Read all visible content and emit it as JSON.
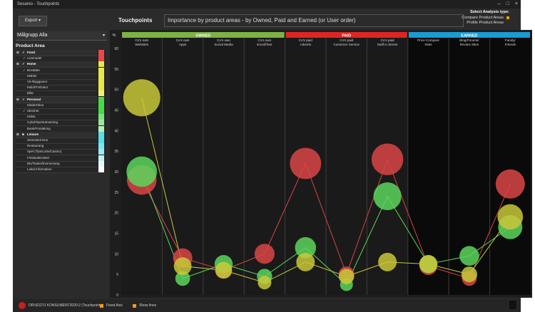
{
  "window": {
    "title": "Sesamo - Touchpoints",
    "controls": [
      "–",
      "□",
      "×"
    ]
  },
  "toolbar": {
    "export_label": "Export"
  },
  "header": {
    "title": "Touchpoints",
    "subtitle": "Importance by product areas - by Owned, Paid and Earned (or User order)"
  },
  "analysis": {
    "label": "Select Analysis type:",
    "options": [
      {
        "label": "Compare Product Areas",
        "selected": true
      },
      {
        "label": "Profile Product Areas",
        "selected": false
      }
    ]
  },
  "sidebar": {
    "group_select": "Målgrupp Alla",
    "product_area_label": "Product Area",
    "items": [
      {
        "label": "Food",
        "category": true,
        "checked": true,
        "color": "#e84848"
      },
      {
        "label": "Livsmedel",
        "category": false,
        "checked": true,
        "color": "#e84848"
      },
      {
        "label": "Home",
        "category": true,
        "checked": true,
        "color": "#e8e84a"
      },
      {
        "label": "Bostäder",
        "category": false,
        "checked": true,
        "color": "#e8e84a"
      },
      {
        "label": "Möbler",
        "category": false,
        "checked": false,
        "color": "#e8e84a"
      },
      {
        "label": "Vit-/Byggvaror",
        "category": false,
        "checked": false,
        "color": "#e8e84a"
      },
      {
        "label": "Mobil/Tv/Dator",
        "category": false,
        "checked": false,
        "color": "#e8e84a"
      },
      {
        "label": "Bilar",
        "category": false,
        "checked": false,
        "color": "#f0f07a"
      },
      {
        "label": "Personal",
        "category": true,
        "checked": true,
        "color": "#44dd44"
      },
      {
        "label": "Kläder/Skor",
        "category": false,
        "checked": false,
        "color": "#44dd44"
      },
      {
        "label": "Skönhet",
        "category": false,
        "checked": true,
        "color": "#44dd44"
      },
      {
        "label": "Hälsa",
        "category": false,
        "checked": false,
        "color": "#7ee27e"
      },
      {
        "label": "Cykel/Sportutrustning",
        "category": false,
        "checked": false,
        "color": "#9ae89a"
      },
      {
        "label": "Bank/Försäkring",
        "category": false,
        "checked": false,
        "color": "#b7efb7"
      },
      {
        "label": "Leisure",
        "category": true,
        "checked": false,
        "color": "#55e0e8"
      },
      {
        "label": "Semesterresor",
        "category": false,
        "checked": false,
        "color": "#55e0e8"
      },
      {
        "label": "Restaurang",
        "category": false,
        "checked": false,
        "color": "#7ae6ec"
      },
      {
        "label": "Spel (Tips/Lotto/Casino)",
        "category": false,
        "checked": false,
        "color": "#9bebf0"
      },
      {
        "label": "Fritidsaktiviteter",
        "category": false,
        "checked": false,
        "color": "#c4f2f5"
      },
      {
        "label": "Bio/Teater/Evenemang",
        "category": false,
        "checked": false,
        "color": "#e3f8fa"
      },
      {
        "label": "Lokal Information",
        "category": false,
        "checked": false,
        "color": "#ffffff"
      }
    ]
  },
  "chart_data": {
    "type": "scatter",
    "ylabel": "%",
    "ylim": [
      0,
      60
    ],
    "yticks": [
      0,
      5,
      10,
      15,
      20,
      25,
      30,
      35,
      40,
      45,
      50,
      55,
      60
    ],
    "groups": [
      {
        "label": "OWNED",
        "color": "#7cb342",
        "span": [
          0,
          4
        ]
      },
      {
        "label": "PAID",
        "color": "#e02424",
        "span": [
          4,
          7
        ]
      },
      {
        "label": "EARNED",
        "color": "#1a9bd1",
        "span": [
          7,
          10
        ]
      }
    ],
    "categories": [
      [
        "Co's own",
        "Websites"
      ],
      [
        "Co's own",
        "Apps"
      ],
      [
        "Co's own",
        "Social Media"
      ],
      [
        "Co's own",
        "Email/Text"
      ],
      [
        "Co's paid",
        "Adverts"
      ],
      [
        "Co's paid",
        "Customer Service"
      ],
      [
        "Co's paid",
        "Staff in Stores"
      ],
      [
        "Price Compare",
        "Sites"
      ],
      [
        "Blog/Forums/",
        "Review Sites"
      ],
      [
        "Family/",
        "Friends"
      ]
    ],
    "series": [
      {
        "color": "#d94545",
        "values": [
          28,
          9,
          6,
          10,
          32,
          5,
          33,
          7,
          4,
          27
        ]
      },
      {
        "color": "#5cd65c",
        "values": [
          30,
          4,
          7.5,
          4.5,
          11.5,
          2.5,
          24,
          7.5,
          9.5,
          16.5
        ]
      },
      {
        "color": "#c8c83a",
        "values": [
          48,
          7,
          6,
          3,
          8,
          4.5,
          8,
          7.5,
          5,
          19
        ]
      }
    ]
  },
  "footer": {
    "brand": "ORVESTO KONSUMENT2020:2 (Touchpoints)",
    "fixed_axis_label": "Fixed Axis",
    "show_lines_label": "Show lines"
  }
}
